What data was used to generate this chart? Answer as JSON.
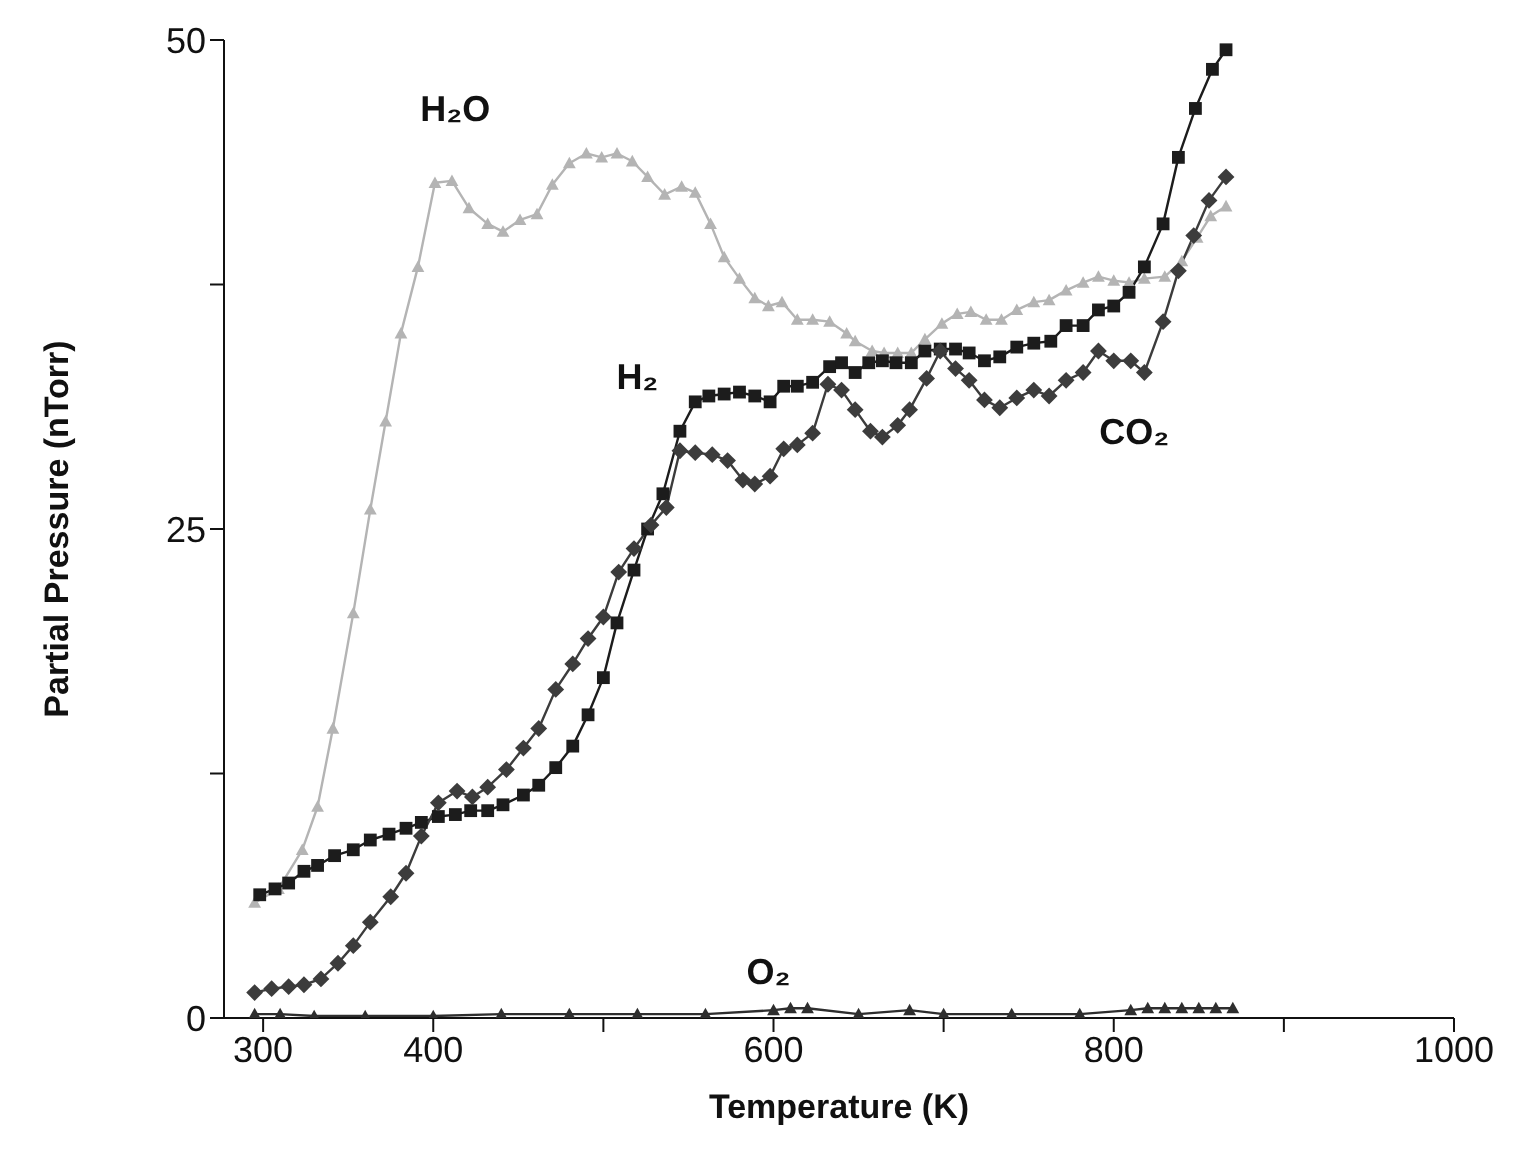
{
  "chart_data": {
    "type": "line",
    "xlabel": "Temperature (K)",
    "ylabel": "Partial Pressure (nTorr)",
    "xlim": [
      277,
      1000
    ],
    "xticks": [
      300,
      400,
      {
        "value": 500,
        "label": null
      },
      600,
      {
        "value": 700,
        "label": null
      },
      800,
      {
        "value": 900,
        "label": null
      },
      1000
    ],
    "ylim": [
      0,
      50
    ],
    "yticks": [
      0,
      {
        "value": 12.5,
        "label": null
      },
      25,
      {
        "value": 37.5,
        "label": null
      },
      50
    ],
    "grid": false,
    "legend": false,
    "line_style": "solid",
    "series": [
      {
        "name": "H₂O",
        "color": "#b4b4b4",
        "marker": "triangle",
        "x": [
          295,
          309,
          323,
          332,
          341,
          353,
          363,
          372,
          381,
          391,
          401,
          411,
          421,
          432,
          441,
          451,
          461,
          470,
          480,
          490,
          499,
          508,
          517,
          526,
          536,
          546,
          554,
          563,
          571,
          580,
          589,
          597,
          605,
          614,
          623,
          633,
          643,
          648,
          658,
          665,
          673,
          681,
          689,
          699,
          708,
          716,
          725,
          734,
          743,
          753,
          762,
          772,
          782,
          791,
          800,
          809,
          818,
          830,
          840,
          849,
          857,
          866
        ],
        "values": [
          5.9,
          6.6,
          8.6,
          10.8,
          14.8,
          20.7,
          26,
          30.5,
          35,
          38.4,
          42.7,
          42.8,
          41.4,
          40.6,
          40.2,
          40.8,
          41.1,
          42.6,
          43.7,
          44.2,
          44,
          44.2,
          43.8,
          43,
          42.1,
          42.5,
          42.2,
          40.6,
          38.9,
          37.8,
          36.8,
          36.4,
          36.6,
          35.7,
          35.7,
          35.6,
          35,
          34.6,
          34.1,
          34,
          34,
          34,
          34.7,
          35.5,
          36,
          36.1,
          35.7,
          35.7,
          36.2,
          36.6,
          36.7,
          37.2,
          37.6,
          37.9,
          37.7,
          37.6,
          37.8,
          37.9,
          38.7,
          39.9,
          41,
          41.5
        ]
      },
      {
        "name": "H₂",
        "color": "#1c1c1c",
        "marker": "square",
        "x": [
          298,
          307,
          315,
          324,
          332,
          342,
          353,
          363,
          374,
          384,
          393,
          403,
          413,
          422,
          432,
          441,
          453,
          462,
          472,
          482,
          491,
          500,
          508,
          518,
          526,
          535,
          545,
          554,
          562,
          571,
          580,
          589,
          598,
          606,
          614,
          623,
          633,
          640,
          648,
          656,
          664,
          672,
          681,
          689,
          698,
          707,
          715,
          724,
          733,
          743,
          753,
          763,
          772,
          782,
          791,
          800,
          809,
          818,
          829,
          838,
          848,
          858,
          866
        ],
        "values": [
          6.3,
          6.6,
          6.9,
          7.5,
          7.8,
          8.3,
          8.6,
          9.1,
          9.4,
          9.7,
          10,
          10.3,
          10.4,
          10.6,
          10.6,
          10.9,
          11.4,
          11.9,
          12.8,
          13.9,
          15.5,
          17.4,
          20.2,
          22.9,
          25,
          26.8,
          30,
          31.5,
          31.8,
          31.9,
          32,
          31.8,
          31.5,
          32.3,
          32.3,
          32.5,
          33.3,
          33.5,
          33,
          33.5,
          33.6,
          33.5,
          33.5,
          34.1,
          34.2,
          34.2,
          34,
          33.6,
          33.8,
          34.3,
          34.5,
          34.6,
          35.4,
          35.4,
          36.2,
          36.4,
          37.1,
          38.4,
          40.6,
          44,
          46.5,
          48.5,
          49.5
        ]
      },
      {
        "name": "CO₂",
        "color": "#3c3c3c",
        "marker": "diamond",
        "x": [
          295,
          305,
          315,
          324,
          334,
          344,
          353,
          363,
          375,
          384,
          393,
          403,
          414,
          423,
          432,
          443,
          453,
          462,
          472,
          482,
          491,
          500,
          509,
          518,
          528,
          537,
          545,
          554,
          564,
          573,
          582,
          589,
          598,
          606,
          614,
          623,
          632,
          640,
          648,
          657,
          664,
          673,
          680,
          690,
          698,
          707,
          715,
          724,
          733,
          743,
          753,
          762,
          772,
          782,
          791,
          800,
          810,
          818,
          829,
          838,
          847,
          856,
          866
        ],
        "values": [
          1.3,
          1.5,
          1.6,
          1.7,
          2,
          2.8,
          3.7,
          4.9,
          6.2,
          7.4,
          9.3,
          11,
          11.6,
          11.3,
          11.8,
          12.7,
          13.8,
          14.8,
          16.8,
          18.1,
          19.4,
          20.5,
          22.8,
          24,
          25.2,
          26.1,
          29,
          28.9,
          28.8,
          28.5,
          27.5,
          27.3,
          27.7,
          29.1,
          29.3,
          29.9,
          32.4,
          32.1,
          31.1,
          30,
          29.7,
          30.3,
          31.1,
          32.7,
          34.1,
          33.2,
          32.6,
          31.6,
          31.2,
          31.7,
          32.1,
          31.8,
          32.6,
          33,
          34.1,
          33.6,
          33.6,
          33,
          35.6,
          38.2,
          40,
          41.8,
          43
        ]
      },
      {
        "name": "O₂",
        "color": "#2e2e2e",
        "marker": "triangle",
        "x": [
          295,
          310,
          330,
          360,
          400,
          440,
          480,
          520,
          560,
          600,
          610,
          620,
          650,
          680,
          700,
          740,
          780,
          810,
          820,
          830,
          840,
          850,
          860,
          870
        ],
        "values": [
          0.2,
          0.2,
          0.1,
          0.1,
          0.1,
          0.2,
          0.2,
          0.2,
          0.2,
          0.4,
          0.5,
          0.5,
          0.2,
          0.4,
          0.2,
          0.2,
          0.2,
          0.4,
          0.5,
          0.5,
          0.5,
          0.5,
          0.5,
          0.5
        ]
      }
    ]
  }
}
